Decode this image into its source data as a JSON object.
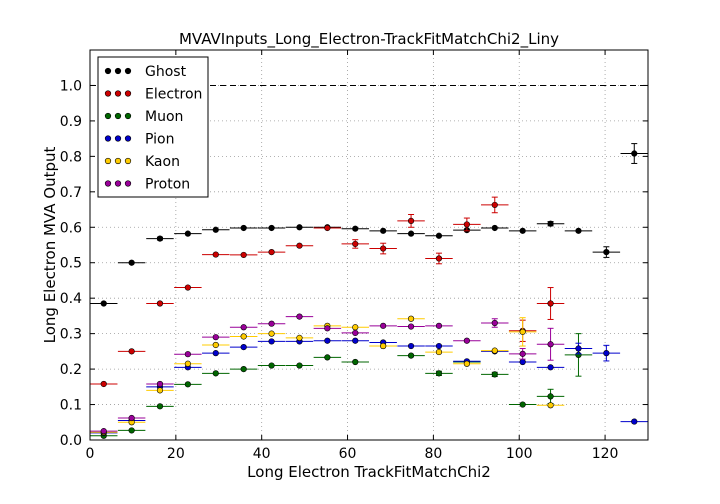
{
  "chart_data": {
    "type": "scatter",
    "title": "MVAVInputs_Long_Electron-TrackFitMatchChi2_Liny",
    "xlabel": "Long Electron TrackFitMatchChi2",
    "ylabel": "Long Electron MVA Output",
    "xlim": [
      0,
      130
    ],
    "ylim": [
      0,
      1.1
    ],
    "xticks": [
      "0",
      "20",
      "40",
      "60",
      "80",
      "100",
      "120"
    ],
    "yticks": [
      "0.0",
      "0.1",
      "0.2",
      "0.3",
      "0.4",
      "0.5",
      "0.6",
      "0.7",
      "0.8",
      "0.9",
      "1.0"
    ],
    "grid": true,
    "reference_line": 1.0,
    "legend_position": "top-left",
    "bin_half_width": 3.2,
    "series": [
      {
        "name": "Ghost",
        "color": "#000000",
        "x": [
          3.2,
          9.7,
          16.3,
          22.8,
          29.3,
          35.8,
          42.3,
          48.8,
          55.3,
          61.8,
          68.3,
          74.8,
          81.3,
          87.8,
          94.3,
          100.8,
          107.3,
          113.8,
          120.3,
          126.8
        ],
        "y": [
          0.385,
          0.5,
          0.568,
          0.582,
          0.593,
          0.598,
          0.598,
          0.6,
          0.6,
          0.596,
          0.59,
          0.582,
          0.576,
          0.592,
          0.598,
          0.59,
          0.61,
          0.59,
          0.53,
          0.808
        ],
        "err": [
          0,
          0,
          0.004,
          0,
          0,
          0,
          0,
          0,
          0,
          0,
          0,
          0,
          0,
          0,
          0,
          0,
          0.006,
          0,
          0.015,
          0.028
        ]
      },
      {
        "name": "Electron",
        "color": "#cc0000",
        "x": [
          3.2,
          9.7,
          16.3,
          22.8,
          29.3,
          35.8,
          42.3,
          48.8,
          55.3,
          61.8,
          68.3,
          74.8,
          81.3,
          87.8,
          94.3,
          100.8,
          107.3
        ],
        "y": [
          0.158,
          0.25,
          0.385,
          0.43,
          0.523,
          0.522,
          0.53,
          0.548,
          0.598,
          0.553,
          0.54,
          0.618,
          0.512,
          0.608,
          0.663,
          0.308,
          0.385
        ],
        "err": [
          0,
          0,
          0,
          0,
          0,
          0,
          0,
          0,
          0,
          0.012,
          0.015,
          0.018,
          0.015,
          0.018,
          0.022,
          0.03,
          0.045
        ]
      },
      {
        "name": "Muon",
        "color": "#006600",
        "x": [
          3.2,
          9.7,
          16.3,
          22.8,
          29.3,
          35.8,
          42.3,
          48.8,
          55.3,
          61.8,
          68.3,
          74.8,
          81.3,
          87.8,
          94.3,
          100.8,
          107.3,
          113.8
        ],
        "y": [
          0.012,
          0.027,
          0.095,
          0.157,
          0.188,
          0.2,
          0.21,
          0.21,
          0.233,
          0.22,
          0.265,
          0.238,
          0.188,
          0.22,
          0.185,
          0.1,
          0.123,
          0.24
        ],
        "err": [
          0,
          0,
          0,
          0,
          0,
          0,
          0,
          0,
          0,
          0,
          0,
          0,
          0.006,
          0,
          0.006,
          0,
          0.02,
          0.06
        ]
      },
      {
        "name": "Pion",
        "color": "#0000cc",
        "x": [
          3.2,
          9.7,
          16.3,
          22.8,
          29.3,
          35.8,
          42.3,
          48.8,
          55.3,
          61.8,
          68.3,
          74.8,
          81.3,
          87.8,
          94.3,
          100.8,
          107.3,
          113.8,
          120.3,
          126.8
        ],
        "y": [
          0.02,
          0.055,
          0.15,
          0.205,
          0.245,
          0.262,
          0.278,
          0.278,
          0.28,
          0.28,
          0.275,
          0.265,
          0.265,
          0.222,
          0.25,
          0.22,
          0.205,
          0.258,
          0.245,
          0.052
        ],
        "err": [
          0,
          0,
          0,
          0,
          0,
          0,
          0,
          0,
          0,
          0,
          0,
          0,
          0,
          0,
          0,
          0,
          0,
          0.015,
          0.022,
          0
        ]
      },
      {
        "name": "Kaon",
        "color": "#ffcc00",
        "x": [
          3.2,
          9.7,
          16.3,
          22.8,
          29.3,
          35.8,
          42.3,
          48.8,
          55.3,
          61.8,
          68.3,
          74.8,
          81.3,
          87.8,
          94.3,
          100.8,
          107.3
        ],
        "y": [
          0.022,
          0.05,
          0.14,
          0.215,
          0.268,
          0.292,
          0.3,
          0.288,
          0.322,
          0.318,
          0.265,
          0.342,
          0.248,
          0.215,
          0.252,
          0.305,
          0.098
        ],
        "err": [
          0,
          0,
          0,
          0,
          0,
          0,
          0,
          0,
          0,
          0,
          0,
          0,
          0,
          0,
          0,
          0.04,
          0
        ]
      },
      {
        "name": "Proton",
        "color": "#990099",
        "x": [
          3.2,
          9.7,
          16.3,
          22.8,
          29.3,
          35.8,
          42.3,
          48.8,
          55.3,
          61.8,
          68.3,
          74.8,
          81.3,
          87.8,
          94.3,
          100.8,
          107.3
        ],
        "y": [
          0.025,
          0.062,
          0.158,
          0.242,
          0.29,
          0.318,
          0.328,
          0.348,
          0.315,
          0.302,
          0.322,
          0.32,
          0.322,
          0.28,
          0.33,
          0.243,
          0.27
        ],
        "err": [
          0,
          0,
          0,
          0,
          0,
          0,
          0,
          0,
          0,
          0,
          0,
          0,
          0,
          0,
          0.012,
          0.015,
          0.045
        ]
      }
    ]
  }
}
